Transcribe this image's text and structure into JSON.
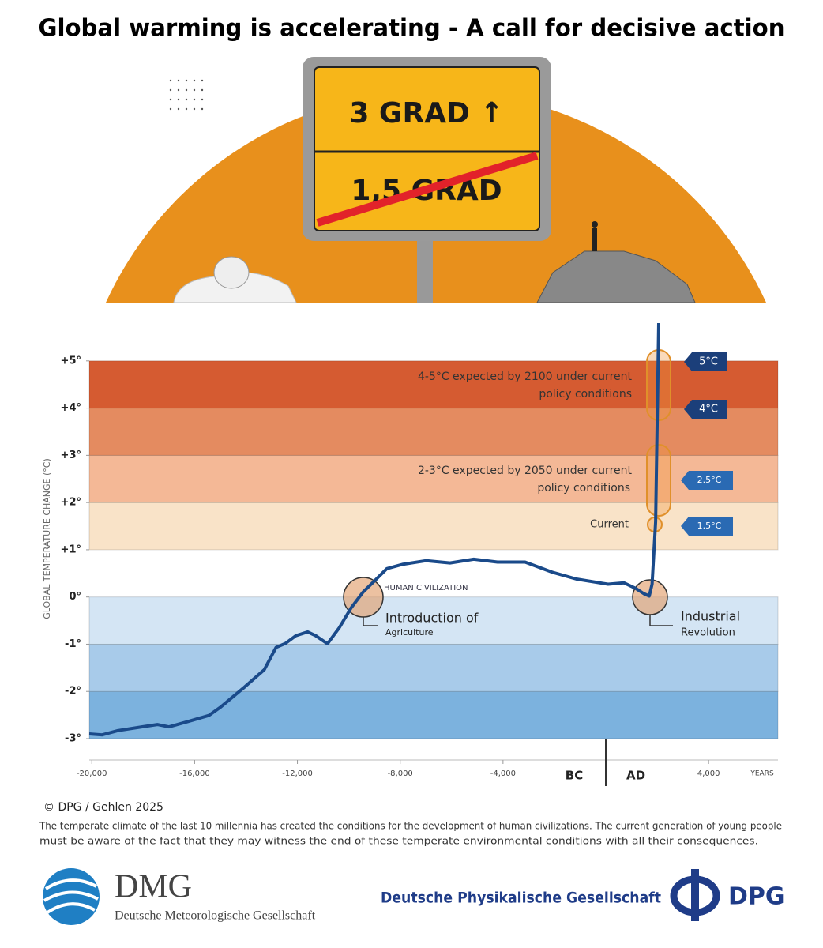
{
  "header": {
    "title": "Global warming is accelerating - A call for decisive action"
  },
  "illustration": {
    "sign_top": "3 GRAD ↑",
    "sign_bottom": "1,5 GRAD"
  },
  "chart_data": {
    "type": "line",
    "y_label": "GLOBAL TEMPERATURE CHANGE (°C)",
    "x_label": "YEARS",
    "era_labels": [
      "BC",
      "AD"
    ],
    "annotations": [
      "4-5°C expected by 2100 under current",
      "policy conditions",
      "2-3°C expected by 2050 under current",
      "policy conditions",
      "Current",
      "HUMAN CIVILIZATION",
      "Introduction of",
      "Agriculture",
      "Industrial",
      "Revolution"
    ],
    "tags": [
      "5°C",
      "4°C",
      "2.5°C",
      "1.5°C"
    ],
    "xlim": [
      -20100,
      6700
    ],
    "ylim": [
      -3,
      5.8
    ],
    "xticks": [
      {
        "value": -20000,
        "label": "-20,000"
      },
      {
        "value": -16000,
        "label": "-16,000"
      },
      {
        "value": -12000,
        "label": "-12,000"
      },
      {
        "value": -8000,
        "label": "-8,000"
      },
      {
        "value": -4000,
        "label": "-4,000"
      },
      {
        "value": 4000,
        "label": "4,000"
      }
    ],
    "yticks": [
      {
        "value": 5,
        "label": "+5°"
      },
      {
        "value": 4,
        "label": "+4°"
      },
      {
        "value": 3,
        "label": "+3°"
      },
      {
        "value": 2,
        "label": "+2°"
      },
      {
        "value": 1,
        "label": "+1°"
      },
      {
        "value": 0,
        "label": "0°"
      },
      {
        "value": -1,
        "label": "-1°"
      },
      {
        "value": -2,
        "label": "-2°"
      },
      {
        "value": -3,
        "label": "-3°"
      }
    ],
    "grid": false,
    "bands": [
      {
        "from": -3,
        "to": -2,
        "color": "#7cb2de"
      },
      {
        "from": -2,
        "to": -1,
        "color": "#a8cbea"
      },
      {
        "from": -1,
        "to": 0,
        "color": "#d4e5f4"
      },
      {
        "from": 1,
        "to": 2,
        "color": "#f9e3c8"
      },
      {
        "from": 2,
        "to": 3,
        "color": "#f4b896"
      },
      {
        "from": 3,
        "to": 4,
        "color": "#e48b60"
      },
      {
        "from": 4,
        "to": 5,
        "color": "#d55b31"
      }
    ],
    "x": [
      -20100,
      -19600,
      -18985,
      -18060,
      -17450,
      -17000,
      -16215,
      -15450,
      -14985,
      -14060,
      -13290,
      -12830,
      -12460,
      -12060,
      -11600,
      -11290,
      -10830,
      -10370,
      -9910,
      -9450,
      -8985,
      -8520,
      -7910,
      -6985,
      -6060,
      -5140,
      -4215,
      -3140,
      -2060,
      -1140,
      90,
      710,
      1170,
      1480,
      1690,
      1800,
      1940,
      2060
    ],
    "series": [
      {
        "color": "#1a4a8a",
        "values": [
          -2.9,
          -2.92,
          -2.83,
          -2.75,
          -2.7,
          -2.75,
          -2.63,
          -2.51,
          -2.33,
          -1.91,
          -1.54,
          -1.07,
          -0.98,
          -0.82,
          -0.74,
          -0.82,
          -0.99,
          -0.65,
          -0.23,
          0.1,
          0.35,
          0.6,
          0.69,
          0.77,
          0.72,
          0.8,
          0.74,
          0.74,
          0.52,
          0.38,
          0.27,
          0.3,
          0.18,
          0.07,
          0.02,
          0.27,
          1.6,
          5.8
        ]
      }
    ]
  },
  "footer": {
    "credit": "© DPG / Gehlen 2025",
    "caption": [
      "The temperate climate of the last 10 millennia has created the conditions for the development of human civilizations. The current generation of young people",
      "must be aware of the fact that they may witness the end of these temperate environmental conditions with all their consequences."
    ]
  },
  "logos": {
    "dmg_short": "DMG",
    "dmg_full": "Deutsche Meteorologische Gesellschaft",
    "dpg_full": "Deutsche Physikalische Gesellschaft",
    "dpg_short": "DPG"
  }
}
